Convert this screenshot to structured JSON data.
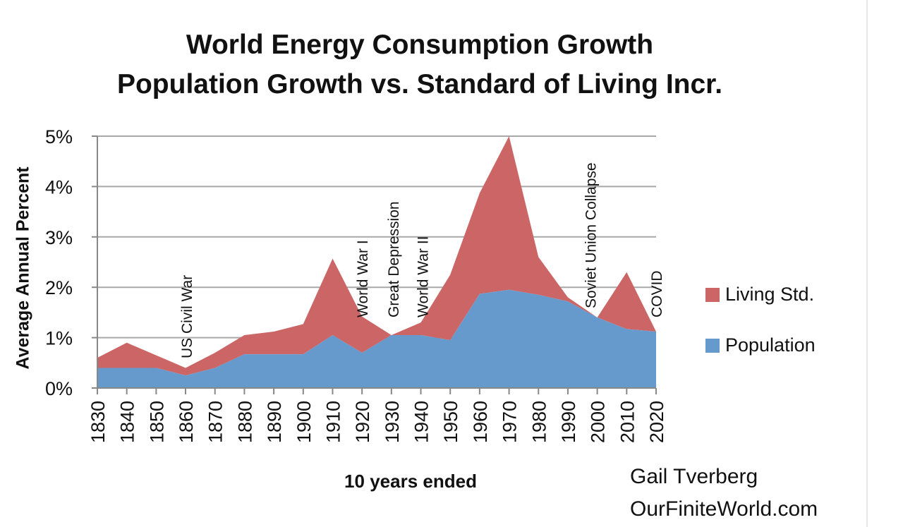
{
  "chart_data": {
    "type": "area",
    "stacked": true,
    "title": "World Energy Consumption Growth",
    "subtitle": "Population Growth vs. Standard of Living Incr.",
    "xlabel": "10 years ended",
    "ylabel": "Average Annual Percent",
    "x": [
      "1830",
      "1840",
      "1850",
      "1860",
      "1870",
      "1880",
      "1890",
      "1900",
      "1910",
      "1920",
      "1930",
      "1940",
      "1950",
      "1960",
      "1970",
      "1980",
      "1990",
      "2000",
      "2010",
      "2020"
    ],
    "ylim": [
      0,
      5
    ],
    "yticks": [
      "0%",
      "1%",
      "2%",
      "3%",
      "4%",
      "5%"
    ],
    "grid": true,
    "legend_position": "right",
    "series": [
      {
        "name": "Population",
        "color": "#6699cc",
        "values": [
          0.4,
          0.4,
          0.4,
          0.25,
          0.4,
          0.67,
          0.67,
          0.67,
          1.05,
          0.7,
          1.05,
          1.05,
          0.95,
          1.87,
          1.95,
          1.85,
          1.72,
          1.4,
          1.17,
          1.12
        ]
      },
      {
        "name": "Living Std.",
        "color": "#cc6666",
        "values": [
          0.2,
          0.5,
          0.25,
          0.15,
          0.3,
          0.38,
          0.45,
          0.6,
          1.52,
          0.72,
          0.0,
          0.25,
          1.3,
          2.0,
          3.05,
          0.75,
          0.08,
          0.0,
          1.13,
          0.0
        ]
      }
    ],
    "annotations": [
      {
        "at": "1860",
        "text": "US Civil War"
      },
      {
        "at": "1920",
        "text": "World War I"
      },
      {
        "at": "1930",
        "text": "Great Depression"
      },
      {
        "at": "1940",
        "text": "World War II"
      },
      {
        "at": "2000",
        "text": "Soviet Union Collapse"
      },
      {
        "at": "2020",
        "text": "COVID"
      }
    ]
  },
  "credit": {
    "author": "Gail Tverberg",
    "site": "OurFiniteWorld.com"
  }
}
